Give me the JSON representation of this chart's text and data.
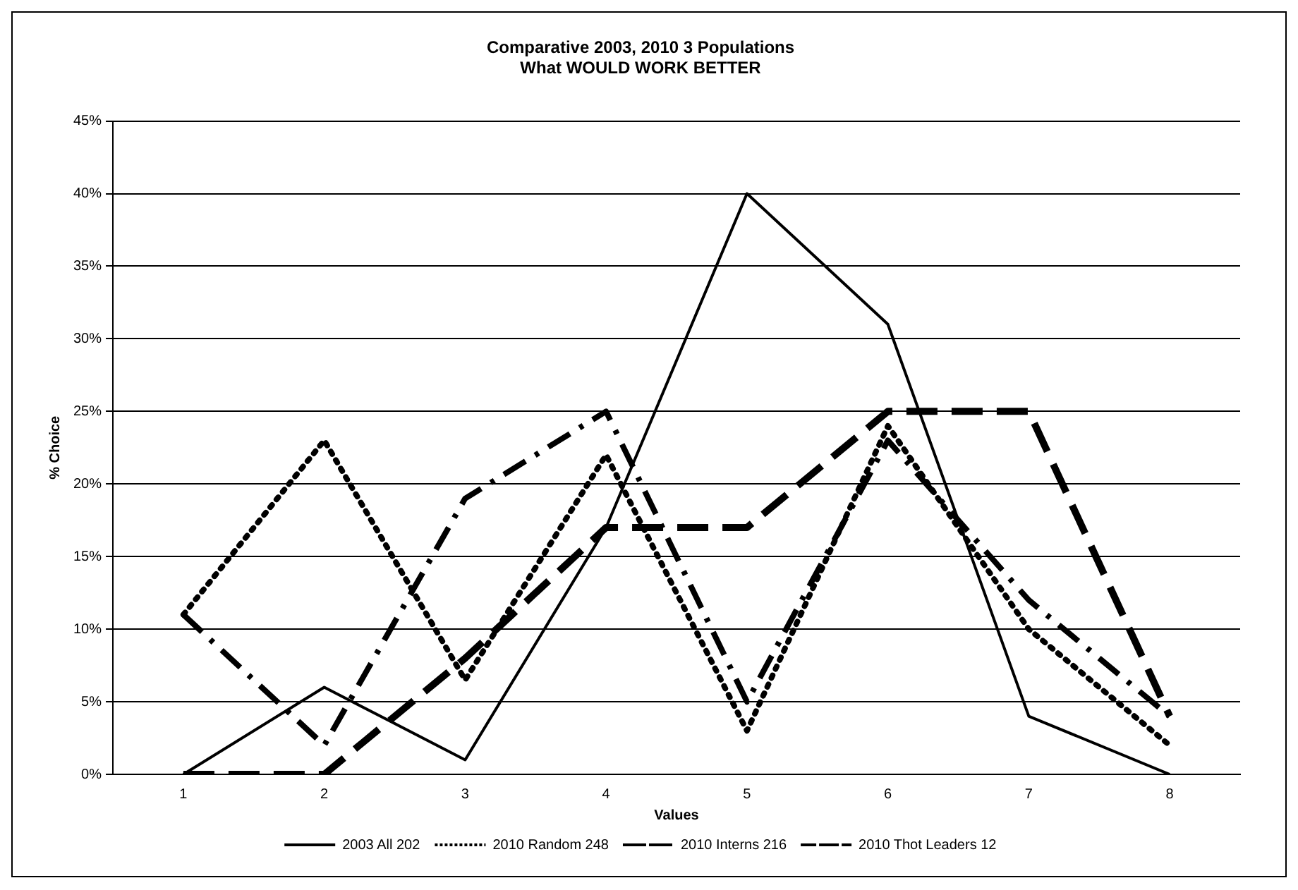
{
  "chart_data": {
    "type": "line",
    "title": "Comparative 2003, 2010 3 Populations\nWhat WOULD WORK BETTER",
    "xlabel": "Values",
    "ylabel": "% Choice",
    "categories": [
      "1",
      "2",
      "3",
      "4",
      "5",
      "6",
      "7",
      "8"
    ],
    "series": [
      {
        "name": "2003 All 202",
        "color": "#000000",
        "line_style": "solid",
        "values": [
          0,
          6,
          1,
          17,
          40,
          31,
          4,
          0
        ]
      },
      {
        "name": "2010 Random 248",
        "color": "#000000",
        "line_style": "dotted",
        "values": [
          11,
          23,
          6.5,
          22,
          3,
          24,
          10,
          2
        ]
      },
      {
        "name": "2010 Interns 216",
        "color": "#000000",
        "line_style": "dashdot",
        "values": [
          11,
          2,
          19,
          25,
          5,
          23,
          12,
          4
        ]
      },
      {
        "name": "2010 Thot Leaders 12",
        "color": "#000000",
        "line_style": "dashed",
        "values": [
          0,
          0,
          8,
          17,
          17,
          25,
          25,
          4
        ]
      }
    ],
    "ylim": [
      0,
      45
    ],
    "yticks": [
      {
        "value": 0,
        "label": "0%"
      },
      {
        "value": 5,
        "label": "5%"
      },
      {
        "value": 10,
        "label": "10%"
      },
      {
        "value": 15,
        "label": "15%"
      },
      {
        "value": 20,
        "label": "20%"
      },
      {
        "value": 25,
        "label": "25%"
      },
      {
        "value": 30,
        "label": "30%"
      },
      {
        "value": 35,
        "label": "35%"
      },
      {
        "value": 40,
        "label": "40%"
      },
      {
        "value": 45,
        "label": "45%"
      }
    ],
    "grid": "y",
    "legend": "bottom",
    "marker": "none"
  }
}
